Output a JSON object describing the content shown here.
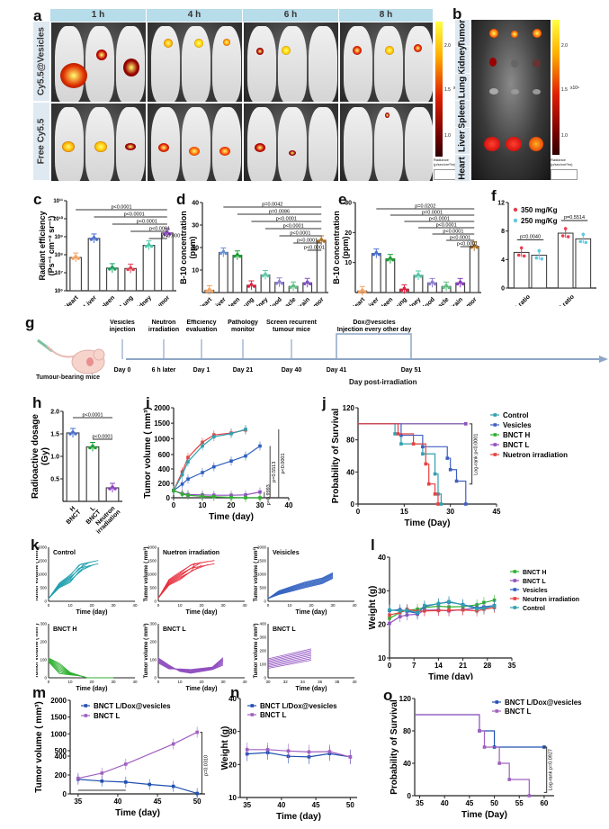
{
  "panel_letters": [
    "a",
    "b",
    "c",
    "d",
    "e",
    "f",
    "g",
    "h",
    "i",
    "j",
    "k",
    "l",
    "m",
    "n",
    "o"
  ],
  "panel_a": {
    "time_headers": [
      "1 h",
      "4 h",
      "6 h",
      "8 h"
    ],
    "row_labels": [
      "Cy5.5@Vesicles",
      "Free Cy5.5"
    ],
    "colorbar_ticks": [
      "2.0",
      "1.5",
      "1.0"
    ],
    "colorbar_exp": "x10⁹",
    "colorbar_title": "Radiance (p/sec/cm²/sr)"
  },
  "panel_b": {
    "organ_labels": [
      "Tumor",
      "Kidney",
      "Lung",
      "Spleen",
      "Liver",
      "Heart"
    ],
    "colorbar_ticks": [
      "2.0",
      "1.5",
      "1.0"
    ],
    "colorbar_exp": "x10⁹",
    "colorbar_title": "Radiance (p/sec/cm²/sr)"
  },
  "panel_g": {
    "events": [
      {
        "top": "Vesicles\ninjection",
        "bottom": "Day 0"
      },
      {
        "top": "Neutron\nirradiation",
        "bottom": "6 h later"
      },
      {
        "top": "Efficiency\nevaluation",
        "bottom": "Day 1"
      },
      {
        "top": "Pathology\nmonitor",
        "bottom": "Day 21"
      },
      {
        "top": "Screen recurrent\ntumour mice",
        "bottom": "Day 40"
      }
    ],
    "bracket_label": "Dox@vesicles\nInjection every other day",
    "bracket_start": "Day 41",
    "bracket_end": "Day 51",
    "mouse_caption": "Tumour-bearing mice",
    "axis_caption": "Day post-irradiation"
  },
  "chart_data": [
    {
      "id": "c",
      "type": "bar",
      "yscale": "log",
      "categories": [
        "Heart",
        "Liver",
        "Spleen",
        "Lung",
        "Kidney",
        "Tumor"
      ],
      "values": [
        70000000.0,
        800000000.0,
        18000000.0,
        17000000.0,
        330000000.0,
        1600000000.0
      ],
      "colors": [
        "#f4a460",
        "#4a6fd0",
        "#1aa060",
        "#e04050",
        "#50c8a8",
        "#8a40c0"
      ],
      "ylabel": "Radiant efficiency\n(Ps⁻¹ cm⁻² sr⁻¹)",
      "ylim": [
        1000000.0,
        100000000000.0
      ],
      "yticks": [
        "10⁶",
        "10⁷",
        "10⁸",
        "10⁹",
        "10¹⁰",
        "10¹¹"
      ],
      "comparisons": [
        "p<0.0001",
        "p<0.0001",
        "p<0.0001",
        "p<0.0001",
        "p<0.0001"
      ]
    },
    {
      "id": "d",
      "type": "bar",
      "categories": [
        "Heart",
        "Liver",
        "Spleen",
        "Lung",
        "Kidney",
        "Blood",
        "Muscle",
        "Brain",
        "Tumor"
      ],
      "values": [
        1.0,
        17.8,
        16.5,
        3.2,
        7.8,
        4.5,
        2.7,
        4.3,
        23.2
      ],
      "colors": [
        "#f4a460",
        "#6a8fd8",
        "#1aa030",
        "#e02040",
        "#60c8a8",
        "#9080d0",
        "#60c080",
        "#8050c0",
        "#b07020"
      ],
      "ylabel": "B-10 concentration\n(ppm)",
      "ylim": [
        0,
        40
      ],
      "yticks": [
        10,
        20,
        30,
        40
      ],
      "comparisons": [
        "p=0.0042",
        "p=0.0086",
        "p<0.0001",
        "p<0.0001",
        "p<0.0001",
        "p<0.0001",
        "p<0.0001"
      ]
    },
    {
      "id": "e",
      "type": "bar",
      "categories": [
        "Heart",
        "Liver",
        "Spleen",
        "Lung",
        "Kidney",
        "Blood",
        "Muscle",
        "Brain",
        "Tumor"
      ],
      "values": [
        0.5,
        13.0,
        11.2,
        1.1,
        5.7,
        3.2,
        2.0,
        3.2,
        15.4
      ],
      "colors": [
        "#f4a460",
        "#4a6fd0",
        "#1aa030",
        "#e02040",
        "#50c8a8",
        "#9080d0",
        "#60c080",
        "#8a40c0",
        "#b07020"
      ],
      "ylabel": "B-10 concentration\n(ppm)",
      "ylim": [
        0,
        30
      ],
      "yticks": [
        10,
        20,
        30
      ],
      "comparisons": [
        "p=0.0202",
        "p=0.0001",
        "p<0.0001",
        "p<0.0001",
        "p<0.0001",
        "p<0.0001",
        "p<0.0001"
      ]
    },
    {
      "id": "f",
      "type": "bar",
      "categories": [
        "T/B ratio",
        "T/N ratio"
      ],
      "series": [
        {
          "name": "350 mg/Kg",
          "color": "#e84050",
          "values": [
            5.0,
            7.7
          ]
        },
        {
          "name": "250 mg/Kg",
          "color": "#60c8e0",
          "values": [
            4.6,
            6.9
          ]
        }
      ],
      "ylim": [
        0,
        12
      ],
      "yticks": [
        0,
        4,
        8,
        12
      ],
      "comparisons": [
        "p=0.0040",
        "p=0.5514"
      ]
    },
    {
      "id": "h",
      "type": "bar",
      "categories": [
        "H BNCT",
        "L BNCT",
        "Neutron irradiation"
      ],
      "values": [
        1.52,
        1.21,
        0.3
      ],
      "colors": [
        "#4a6fd0",
        "#1aa030",
        "#8a40c0"
      ],
      "ylabel": "Radioactive dosage\n(Gy)",
      "ylim": [
        0,
        2.0
      ],
      "yticks": [
        "0.5",
        "1.0",
        "1.5",
        "2.0"
      ],
      "comparisons": [
        "p<0.0001",
        "p<0.0001"
      ]
    },
    {
      "id": "i",
      "type": "line",
      "xlabel": "Time (day)",
      "ylabel": "Tumor volume ( mm³)",
      "x_ticks": [
        0,
        10,
        20,
        30,
        40
      ],
      "y_ticks_low": [
        0,
        200,
        400,
        600
      ],
      "y_ticks_high": [
        1000,
        1500,
        2000
      ],
      "series": [
        {
          "name": "Nuetron irradiation",
          "color": "#e84040",
          "x": [
            0,
            3,
            5,
            10,
            14,
            20,
            25
          ],
          "y": [
            100,
            360,
            560,
            880,
            1120,
            1180,
            1280
          ]
        },
        {
          "name": "Control",
          "color": "#30a0b0",
          "x": [
            0,
            3,
            5,
            10,
            14,
            20,
            25
          ],
          "y": [
            100,
            320,
            500,
            760,
            1060,
            1160,
            1300
          ]
        },
        {
          "name": "Vesicles",
          "color": "#3060c0",
          "x": [
            0,
            3,
            5,
            10,
            14,
            20,
            25,
            30
          ],
          "y": [
            100,
            190,
            260,
            350,
            430,
            510,
            580,
            760
          ]
        },
        {
          "name": "BNCT L",
          "color": "#9050c0",
          "x": [
            0,
            3,
            5,
            10,
            14,
            20,
            25,
            30
          ],
          "y": [
            100,
            60,
            45,
            40,
            35,
            35,
            40,
            80
          ]
        },
        {
          "name": "BNCT H",
          "color": "#30b030",
          "x": [
            0,
            3,
            5,
            10,
            14,
            20,
            25,
            30
          ],
          "y": [
            100,
            50,
            35,
            20,
            15,
            5,
            0,
            0
          ]
        }
      ],
      "comparisons": [
        "p=0.9993",
        "p=0.5513",
        "p<0.0001"
      ]
    },
    {
      "id": "j",
      "type": "line",
      "subtype": "survival",
      "xlabel": "Time (Day)",
      "ylabel": "Probability of Survival",
      "xlim": [
        0,
        45
      ],
      "ylim": [
        0,
        120
      ],
      "x_ticks": [
        0,
        15,
        30,
        45
      ],
      "y_ticks": [
        0,
        40,
        80,
        120
      ],
      "series": [
        {
          "name": "Control",
          "color": "#30a0b0",
          "x": [
            0,
            12,
            14,
            21,
            25,
            26,
            27
          ],
          "y": [
            100,
            87.5,
            75,
            62.5,
            37.5,
            12.5,
            0
          ]
        },
        {
          "name": "Vesicles",
          "color": "#4060c0",
          "x": [
            0,
            14,
            21,
            29,
            30,
            32,
            35
          ],
          "y": [
            100,
            85.7,
            71.4,
            57.1,
            42.9,
            28.6,
            0
          ]
        },
        {
          "name": "BNCT H",
          "color": "#30b030",
          "x": [
            0,
            35
          ],
          "y": [
            100,
            100
          ]
        },
        {
          "name": "BNCT L",
          "color": "#9050c0",
          "x": [
            0,
            35
          ],
          "y": [
            100,
            100
          ]
        },
        {
          "name": "Nuetron irradiation",
          "color": "#e84040",
          "x": [
            0,
            13,
            18,
            22,
            23,
            25,
            26
          ],
          "y": [
            100,
            87.5,
            75,
            50,
            25,
            12.5,
            0
          ]
        }
      ],
      "annotation": "Log-rank p<0.0001"
    },
    {
      "id": "k",
      "type": "line",
      "subtype": "spaghetti",
      "subpanels": [
        {
          "title": "Control",
          "color": "#20a0b0",
          "xlim": [
            0,
            40
          ],
          "ylim": [
            0,
            2000
          ],
          "xticks": [
            0,
            10,
            20,
            30,
            40
          ],
          "yticks": [
            0,
            500,
            1000,
            1500,
            2000
          ],
          "xlabel": "Time (day)"
        },
        {
          "title": "Nuetron irradiation",
          "color": "#e83040",
          "xlim": [
            0,
            40
          ],
          "ylim": [
            0,
            2000
          ],
          "xticks": [
            0,
            10,
            20,
            30,
            40
          ],
          "yticks": [
            0,
            500,
            1000,
            1500,
            2000
          ],
          "xlabel": "Time (day)"
        },
        {
          "title": "Veisicles",
          "color": "#3060c0",
          "xlim": [
            0,
            40
          ],
          "ylim": [
            0,
            2000
          ],
          "xticks": [
            0,
            10,
            20,
            30,
            40
          ],
          "yticks": [
            0,
            500,
            1000,
            1500,
            2000
          ],
          "xlabel": "Time (day)"
        },
        {
          "title": "BNCT H",
          "color": "#30b030",
          "xlim": [
            0,
            40
          ],
          "ylim": [
            0,
            300
          ],
          "xticks": [
            0,
            10,
            20,
            30,
            40
          ],
          "yticks": [
            0,
            100,
            200,
            300
          ],
          "xlabel": "Time (day)"
        },
        {
          "title": "BNCT L",
          "color": "#9050c0",
          "xlim": [
            0,
            40
          ],
          "ylim": [
            0,
            300
          ],
          "xticks": [
            0,
            10,
            20,
            30,
            40
          ],
          "yticks": [
            0,
            100,
            200,
            300
          ],
          "xlabel": "Time (day)"
        },
        {
          "title": "BNCT L",
          "color": "#9050c0",
          "xlim": [
            30,
            40
          ],
          "ylim": [
            0,
            400
          ],
          "xticks": [
            30,
            32,
            34,
            36,
            38,
            40
          ],
          "yticks": [
            0,
            100,
            200,
            300,
            400
          ],
          "xlabel": "Time (day)"
        }
      ],
      "ylabel": "Tumor volume ( mm³)"
    },
    {
      "id": "l",
      "type": "line",
      "xlabel": "Time (day)",
      "ylabel": "Weight (g)",
      "xlim": [
        0,
        35
      ],
      "ylim": [
        10,
        40
      ],
      "x_ticks": [
        0,
        7,
        14,
        21,
        28,
        35
      ],
      "y_ticks": [
        10,
        20,
        30,
        40
      ],
      "series": [
        {
          "name": "BNCT H",
          "color": "#30b030",
          "x": [
            0,
            3,
            5,
            8,
            10,
            14,
            17,
            21,
            25,
            27,
            30
          ],
          "y": [
            21.8,
            23.5,
            24.2,
            24.5,
            25.0,
            25.4,
            25.2,
            25.3,
            25.8,
            26.5,
            27.2
          ]
        },
        {
          "name": "BNCT L",
          "color": "#9050c0",
          "x": [
            0,
            3,
            5,
            8,
            10,
            14,
            17,
            21,
            25,
            27,
            30
          ],
          "y": [
            20.3,
            22.3,
            22.8,
            23.0,
            24.2,
            24.3,
            24.0,
            24.4,
            24.8,
            25.0,
            25.4
          ]
        },
        {
          "name": "Vesicles",
          "color": "#3060c0",
          "x": [
            0,
            3,
            5,
            8,
            10,
            14,
            17,
            21,
            25,
            27,
            30
          ],
          "y": [
            24.1,
            24.4,
            23.9,
            23.3,
            25.3,
            26.2,
            26.6,
            25.9,
            24.9,
            25.2,
            25.6
          ]
        },
        {
          "name": "Neutron irradiation",
          "color": "#e84040",
          "x": [
            0,
            3,
            5,
            8,
            10,
            14,
            17,
            21,
            25,
            27,
            30
          ],
          "y": [
            22.8,
            23.5,
            24.5,
            23.9,
            24.0,
            24.1,
            24.2,
            24.3,
            24.0,
            24.5,
            25.0
          ]
        },
        {
          "name": "Control",
          "color": "#30a0b0",
          "x": [
            0,
            3,
            5,
            8,
            10,
            14,
            17,
            21,
            25,
            27,
            30
          ],
          "y": [
            24.3,
            24.0,
            24.2,
            23.5,
            25.6,
            26.1,
            26.8,
            25.8,
            24.6,
            24.8,
            25.5
          ]
        }
      ]
    },
    {
      "id": "m",
      "type": "line",
      "xlabel": "Time (day)",
      "ylabel": "Tumor volume ( mm³)",
      "x_ticks": [
        35,
        40,
        45,
        50
      ],
      "y_ticks_low": [
        0,
        200,
        400
      ],
      "y_ticks_high": [
        500,
        1000,
        1500,
        2000
      ],
      "series": [
        {
          "name": "BNCT L/Dox@vesicles",
          "color": "#2050b0",
          "x": [
            35,
            38,
            41,
            44,
            47,
            50
          ],
          "y": [
            155,
            135,
            125,
            100,
            80,
            5
          ]
        },
        {
          "name": "BNCT L",
          "color": "#a060c0",
          "x": [
            35,
            38,
            41,
            47,
            50
          ],
          "y": [
            165,
            220,
            315,
            700,
            1050
          ]
        }
      ],
      "annotation": "p=0.0310"
    },
    {
      "id": "n",
      "type": "line",
      "xlabel": "Time (day)",
      "ylabel": "Weight (g)",
      "xlim": [
        35,
        50
      ],
      "ylim": [
        10,
        40
      ],
      "x_ticks": [
        35,
        40,
        45,
        50
      ],
      "y_ticks": [
        10,
        20,
        30,
        40
      ],
      "series": [
        {
          "name": "BNCT L/Dox@vesicles",
          "color": "#2050b0",
          "x": [
            35,
            38,
            41,
            44,
            47,
            50
          ],
          "y": [
            23.2,
            23.6,
            22.5,
            22.3,
            23.3,
            22.3
          ]
        },
        {
          "name": "BNCT L",
          "color": "#a060c0",
          "x": [
            35,
            38,
            41,
            44,
            47,
            50
          ],
          "y": [
            24.5,
            24.5,
            24.1,
            23.8,
            23.9,
            22.3
          ]
        }
      ]
    },
    {
      "id": "o",
      "type": "line",
      "subtype": "survival",
      "xlabel": "Time (Day)",
      "ylabel": "Probability of Survival",
      "xlim": [
        34,
        62
      ],
      "ylim": [
        0,
        120
      ],
      "x_ticks": [
        35,
        40,
        45,
        50,
        55,
        60
      ],
      "y_ticks": [
        0,
        40,
        80,
        120
      ],
      "series": [
        {
          "name": "BNCT L/Dox@vesicles",
          "color": "#2050b0",
          "x": [
            34,
            47,
            50,
            60
          ],
          "y": [
            100,
            80,
            60,
            60
          ]
        },
        {
          "name": "BNCT L",
          "color": "#a060c0",
          "x": [
            34,
            47,
            48,
            51,
            53,
            57
          ],
          "y": [
            100,
            80,
            60,
            40,
            20,
            0
          ]
        }
      ],
      "annotation": "Log-rank p=0.0927"
    }
  ]
}
